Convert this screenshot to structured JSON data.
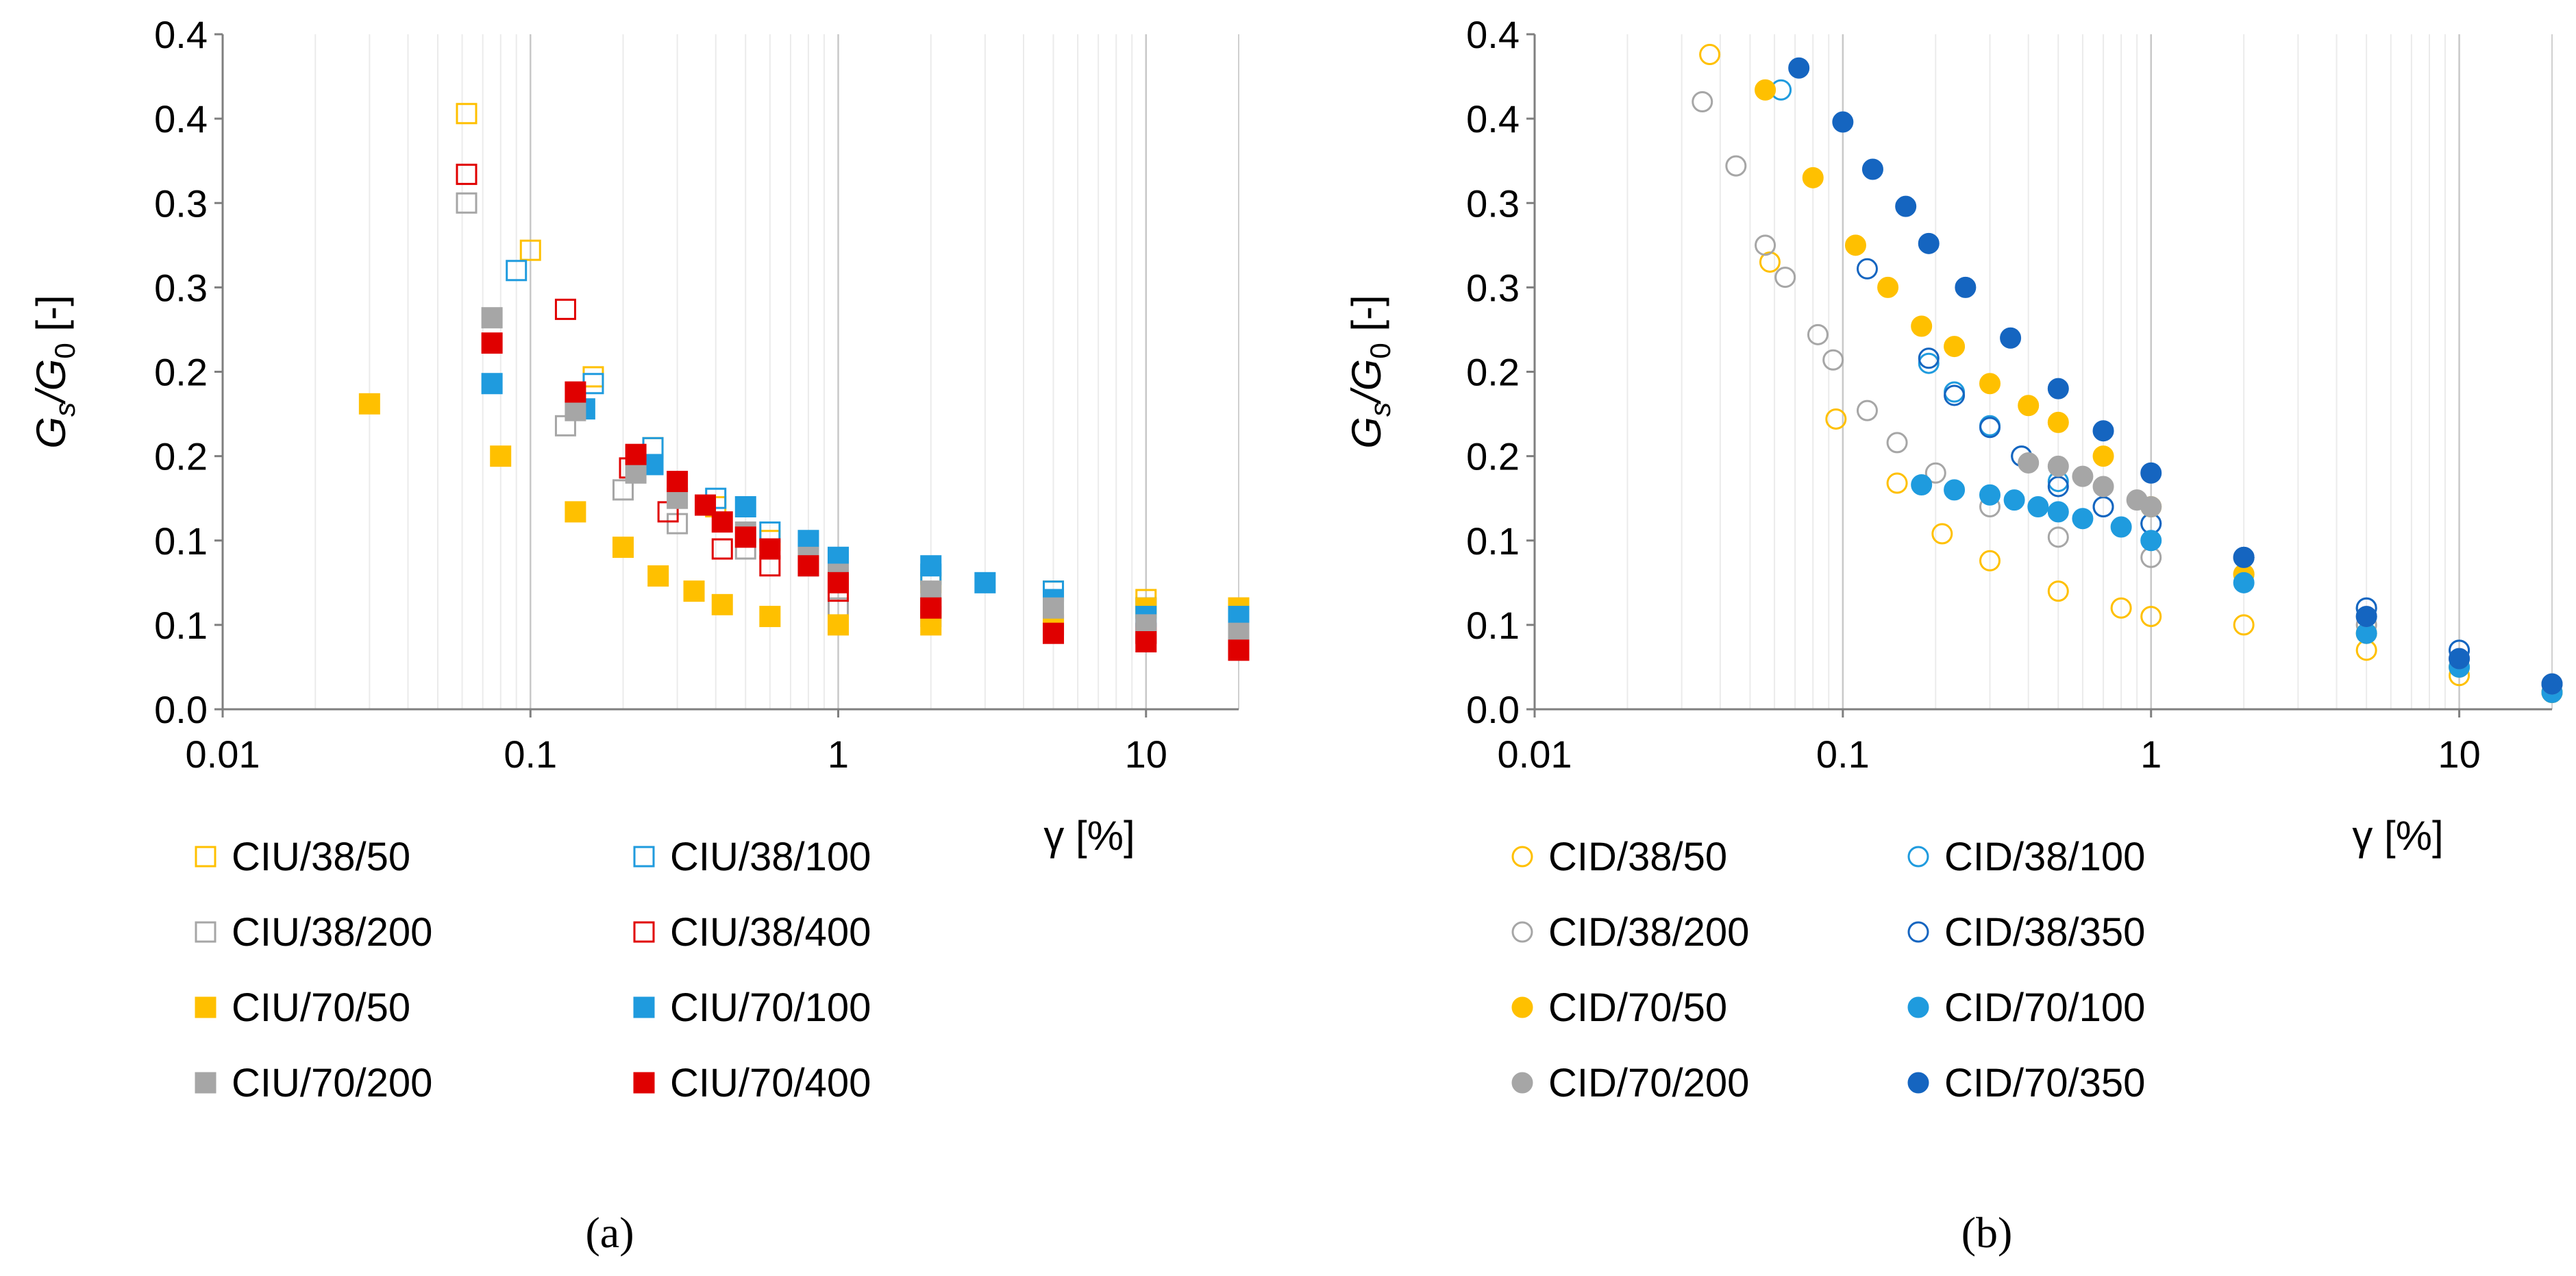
{
  "chart_data": [
    {
      "type": "scatter",
      "panel_label": "(a)",
      "xscale": "log",
      "xlim": [
        0.01,
        20
      ],
      "ylim": [
        0.0,
        0.4
      ],
      "xticks": [
        "0.01",
        "0.1",
        "1",
        "10"
      ],
      "yticks": [
        "0.0",
        "0.1",
        "0.1",
        "0.2",
        "0.2",
        "0.3",
        "0.3",
        "0.4",
        "0.4"
      ],
      "xlabel": "γ [%]",
      "ylabel_main": "G",
      "ylabel_sub1": "s",
      "ylabel_slash": "/G",
      "ylabel_sub2": "0",
      "ylabel_tail": " [-]",
      "legend_position": "bottom",
      "series": [
        {
          "name": "CIU/38/50",
          "color": "#FFC000",
          "marker": "square",
          "filled": false,
          "x": [
            0.062,
            0.1,
            0.16,
            0.25,
            0.4,
            0.6,
            1.0,
            2.0,
            5.0,
            10.0,
            20.0
          ],
          "y": [
            0.353,
            0.272,
            0.197,
            0.155,
            0.12,
            0.1,
            0.085,
            0.075,
            0.07,
            0.065,
            0.06
          ]
        },
        {
          "name": "CIU/38/100",
          "color": "#1F9BDE",
          "marker": "square",
          "filled": false,
          "x": [
            0.09,
            0.16,
            0.25,
            0.4,
            0.6,
            1.0,
            2.0,
            5.0,
            10.0,
            20.0
          ],
          "y": [
            0.26,
            0.193,
            0.155,
            0.125,
            0.105,
            0.09,
            0.08,
            0.07,
            0.06,
            0.05
          ]
        },
        {
          "name": "CIU/38/200",
          "color": "#A6A6A6",
          "marker": "square",
          "filled": false,
          "x": [
            0.062,
            0.13,
            0.2,
            0.3,
            0.5,
            0.8,
            1.0,
            2.0,
            5.0,
            10.0,
            20.0
          ],
          "y": [
            0.3,
            0.168,
            0.13,
            0.11,
            0.095,
            0.085,
            0.06,
            0.055,
            0.05,
            0.045,
            0.04
          ]
        },
        {
          "name": "CIU/38/400",
          "color": "#E00000",
          "marker": "square",
          "filled": false,
          "x": [
            0.062,
            0.13,
            0.21,
            0.28,
            0.42,
            0.6,
            1.0,
            2.0,
            5.0,
            10.0,
            20.0
          ],
          "y": [
            0.317,
            0.237,
            0.143,
            0.117,
            0.095,
            0.085,
            0.07,
            0.06,
            0.05,
            0.045,
            0.04
          ]
        },
        {
          "name": "CIU/70/50",
          "color": "#FFC000",
          "marker": "square",
          "filled": true,
          "x": [
            0.03,
            0.08,
            0.14,
            0.2,
            0.26,
            0.34,
            0.42,
            0.6,
            1.0,
            2.0,
            5.0,
            10.0,
            20.0
          ],
          "y": [
            0.181,
            0.15,
            0.117,
            0.096,
            0.079,
            0.07,
            0.062,
            0.055,
            0.05,
            0.05,
            0.055,
            0.06,
            0.06
          ]
        },
        {
          "name": "CIU/70/100",
          "color": "#1F9BDE",
          "marker": "square",
          "filled": true,
          "x": [
            0.075,
            0.15,
            0.25,
            0.5,
            0.8,
            1.0,
            2.0,
            3.0,
            5.0,
            10.0,
            20.0
          ],
          "y": [
            0.193,
            0.178,
            0.145,
            0.12,
            0.1,
            0.09,
            0.085,
            0.075,
            0.065,
            0.055,
            0.055
          ]
        },
        {
          "name": "CIU/70/200",
          "color": "#A6A6A6",
          "marker": "square",
          "filled": true,
          "x": [
            0.075,
            0.14,
            0.22,
            0.3,
            0.5,
            0.8,
            1.0,
            2.0,
            5.0,
            10.0,
            20.0
          ],
          "y": [
            0.232,
            0.177,
            0.14,
            0.125,
            0.105,
            0.09,
            0.08,
            0.07,
            0.06,
            0.05,
            0.045
          ]
        },
        {
          "name": "CIU/70/400",
          "color": "#E00000",
          "marker": "square",
          "filled": true,
          "x": [
            0.075,
            0.14,
            0.22,
            0.3,
            0.37,
            0.42,
            0.5,
            0.6,
            0.8,
            1.0,
            2.0,
            5.0,
            10.0,
            20.0
          ],
          "y": [
            0.217,
            0.188,
            0.151,
            0.135,
            0.121,
            0.111,
            0.102,
            0.095,
            0.085,
            0.075,
            0.06,
            0.045,
            0.04,
            0.035
          ]
        }
      ]
    },
    {
      "type": "scatter",
      "panel_label": "(b)",
      "xscale": "log",
      "xlim": [
        0.01,
        20
      ],
      "ylim": [
        0.0,
        0.4
      ],
      "xticks": [
        "0.01",
        "0.1",
        "1",
        "10"
      ],
      "yticks": [
        "0.0",
        "0.1",
        "0.1",
        "0.2",
        "0.2",
        "0.3",
        "0.3",
        "0.4",
        "0.4"
      ],
      "xlabel": "γ [%]",
      "ylabel_main": "G",
      "ylabel_sub1": "s",
      "ylabel_slash": "/G",
      "ylabel_sub2": "0",
      "ylabel_tail": " [-]",
      "legend_position": "bottom",
      "series": [
        {
          "name": "CID/38/50",
          "color": "#FFC000",
          "marker": "circle",
          "filled": false,
          "x": [
            0.037,
            0.058,
            0.095,
            0.15,
            0.21,
            0.3,
            0.5,
            0.8,
            1.0,
            2.0,
            5.0,
            10.0,
            20.0
          ],
          "y": [
            0.388,
            0.265,
            0.172,
            0.134,
            0.104,
            0.088,
            0.07,
            0.06,
            0.055,
            0.05,
            0.035,
            0.02,
            0.01
          ]
        },
        {
          "name": "CID/38/100",
          "color": "#1F9BDE",
          "marker": "circle",
          "filled": false,
          "x": [
            0.063,
            0.19,
            0.23,
            0.3,
            0.38,
            0.5,
            0.7,
            1.0,
            2.0,
            5.0,
            10.0,
            20.0
          ],
          "y": [
            0.367,
            0.205,
            0.188,
            0.168,
            0.15,
            0.135,
            0.12,
            0.11,
            0.09,
            0.06,
            0.035,
            0.01
          ]
        },
        {
          "name": "CID/38/200",
          "color": "#A6A6A6",
          "marker": "circle",
          "filled": false,
          "x": [
            0.035,
            0.045,
            0.056,
            0.065,
            0.083,
            0.093,
            0.12,
            0.15,
            0.2,
            0.3,
            0.5,
            1.0,
            2.0,
            5.0,
            10.0,
            20.0
          ],
          "y": [
            0.36,
            0.322,
            0.275,
            0.256,
            0.222,
            0.207,
            0.177,
            0.158,
            0.14,
            0.12,
            0.102,
            0.09,
            0.08,
            0.05,
            0.03,
            0.015
          ]
        },
        {
          "name": "CID/38/350",
          "color": "#1565C0",
          "marker": "circle",
          "filled": false,
          "x": [
            0.12,
            0.19,
            0.23,
            0.3,
            0.38,
            0.5,
            0.7,
            1.0,
            2.0,
            5.0,
            10.0,
            20.0
          ],
          "y": [
            0.261,
            0.208,
            0.186,
            0.167,
            0.15,
            0.132,
            0.12,
            0.11,
            0.09,
            0.06,
            0.035,
            0.015
          ]
        },
        {
          "name": "CID/70/50",
          "color": "#FFC000",
          "marker": "circle",
          "filled": true,
          "x": [
            0.056,
            0.08,
            0.11,
            0.14,
            0.18,
            0.23,
            0.3,
            0.4,
            0.5,
            0.7,
            1.0,
            2.0,
            5.0,
            10.0,
            20.0
          ],
          "y": [
            0.367,
            0.315,
            0.275,
            0.25,
            0.227,
            0.215,
            0.193,
            0.18,
            0.17,
            0.15,
            0.12,
            0.08,
            0.045,
            0.025,
            0.01
          ]
        },
        {
          "name": "CID/70/100",
          "color": "#1F9BDE",
          "marker": "circle",
          "filled": true,
          "x": [
            0.18,
            0.23,
            0.3,
            0.36,
            0.43,
            0.5,
            0.6,
            0.8,
            1.0,
            2.0,
            5.0,
            10.0,
            20.0
          ],
          "y": [
            0.133,
            0.13,
            0.127,
            0.124,
            0.12,
            0.117,
            0.113,
            0.108,
            0.1,
            0.075,
            0.045,
            0.025,
            0.01
          ]
        },
        {
          "name": "CID/70/200",
          "color": "#A6A6A6",
          "marker": "circle",
          "filled": true,
          "x": [
            0.4,
            0.5,
            0.6,
            0.7,
            0.9,
            1.0,
            2.0,
            5.0,
            10.0,
            20.0
          ],
          "y": [
            0.146,
            0.144,
            0.138,
            0.132,
            0.124,
            0.12,
            0.09,
            0.055,
            0.03,
            0.015
          ]
        },
        {
          "name": "CID/70/350",
          "color": "#1565C0",
          "marker": "circle",
          "filled": true,
          "x": [
            0.072,
            0.1,
            0.125,
            0.16,
            0.19,
            0.25,
            0.35,
            0.5,
            0.7,
            1.0,
            2.0,
            5.0,
            10.0,
            20.0
          ],
          "y": [
            0.38,
            0.348,
            0.32,
            0.298,
            0.276,
            0.25,
            0.22,
            0.19,
            0.165,
            0.14,
            0.09,
            0.055,
            0.03,
            0.015
          ]
        }
      ]
    }
  ]
}
